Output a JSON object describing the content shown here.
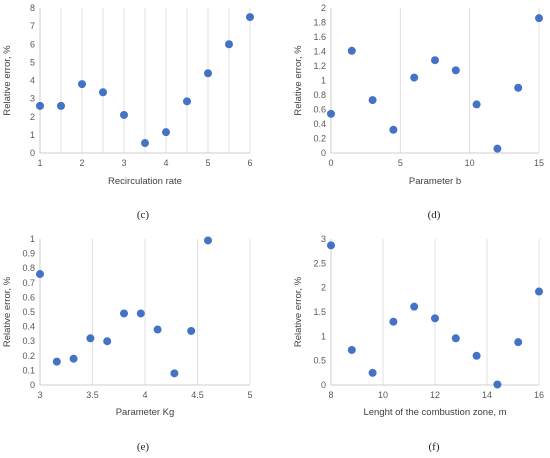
{
  "chart_data": [
    {
      "id": "c",
      "type": "scatter",
      "caption": "(c)",
      "xlabel": "Recirculation rate",
      "ylabel": "Relative error, %",
      "xlim": [
        1,
        6
      ],
      "ylim": [
        0,
        8
      ],
      "xticks": [
        1,
        1.5,
        2,
        2.5,
        3,
        3.5,
        4,
        4.5,
        5,
        5.5,
        6
      ],
      "xtick_labels": [
        "1",
        "",
        "2",
        "",
        "3",
        "",
        "4",
        "",
        "5",
        "",
        "6"
      ],
      "yticks": [
        0,
        1,
        2,
        3,
        4,
        5,
        6,
        7,
        8
      ],
      "ytick_labels": [
        "0",
        "1",
        "2",
        "3",
        "4",
        "5",
        "6",
        "7",
        "8"
      ],
      "grid": "vertical",
      "points": [
        [
          1,
          2.6
        ],
        [
          1.5,
          2.6
        ],
        [
          2,
          3.8
        ],
        [
          2.5,
          3.35
        ],
        [
          3,
          2.1
        ],
        [
          3.5,
          0.55
        ],
        [
          4,
          1.15
        ],
        [
          4.5,
          2.85
        ],
        [
          5,
          4.4
        ],
        [
          5.5,
          6.0
        ],
        [
          6,
          7.5
        ]
      ]
    },
    {
      "id": "d",
      "type": "scatter",
      "caption": "(d)",
      "xlabel": "Parameter b",
      "ylabel": "Relative error, %",
      "xlim": [
        0,
        15
      ],
      "ylim": [
        0,
        2
      ],
      "xticks": [
        0,
        5,
        10,
        15
      ],
      "xtick_labels": [
        "0",
        "5",
        "10",
        "15"
      ],
      "yticks": [
        0,
        0.2,
        0.4,
        0.6,
        0.8,
        1,
        1.2,
        1.4,
        1.6,
        1.8,
        2
      ],
      "ytick_labels": [
        "0",
        "0.2",
        "0.4",
        "0.6",
        "0.8",
        "1",
        "1.2",
        "1.4",
        "1.6",
        "1.8",
        "2"
      ],
      "grid": "vertical",
      "points": [
        [
          0,
          0.54
        ],
        [
          1.5,
          1.41
        ],
        [
          3,
          0.73
        ],
        [
          4.5,
          0.32
        ],
        [
          6,
          1.04
        ],
        [
          7.5,
          1.28
        ],
        [
          9,
          1.14
        ],
        [
          10.5,
          0.67
        ],
        [
          12,
          0.06
        ],
        [
          13.5,
          0.9
        ],
        [
          15,
          1.86
        ]
      ]
    },
    {
      "id": "e",
      "type": "scatter",
      "caption": "(e)",
      "xlabel": "Parameter Kg",
      "ylabel": "Relative error, %",
      "xlim": [
        3,
        5
      ],
      "ylim": [
        0,
        1
      ],
      "xticks": [
        3,
        3.5,
        4,
        4.5,
        5
      ],
      "xtick_labels": [
        "3",
        "3.5",
        "4",
        "4.5",
        "5"
      ],
      "yticks": [
        0,
        0.1,
        0.2,
        0.3,
        0.4,
        0.5,
        0.6,
        0.7,
        0.8,
        0.9,
        1
      ],
      "ytick_labels": [
        "0",
        "0.1",
        "0.2",
        "0.3",
        "0.4",
        "0.5",
        "0.6",
        "0.7",
        "0.8",
        "0.9",
        "1"
      ],
      "grid": "vertical",
      "points": [
        [
          3.0,
          0.76
        ],
        [
          3.16,
          0.16
        ],
        [
          3.32,
          0.18
        ],
        [
          3.48,
          0.32
        ],
        [
          3.64,
          0.3
        ],
        [
          3.8,
          0.49
        ],
        [
          3.96,
          0.49
        ],
        [
          4.12,
          0.38
        ],
        [
          4.28,
          0.08
        ],
        [
          4.44,
          0.37
        ],
        [
          4.6,
          0.99
        ]
      ]
    },
    {
      "id": "f",
      "type": "scatter",
      "caption": "(f)",
      "xlabel": "Lenght of the combustion zone, m",
      "ylabel": "Relative error, %",
      "xlim": [
        8,
        16
      ],
      "ylim": [
        0,
        3
      ],
      "xticks": [
        8,
        10,
        12,
        14,
        16
      ],
      "xtick_labels": [
        "8",
        "10",
        "12",
        "14",
        "16"
      ],
      "yticks": [
        0,
        0.5,
        1,
        1.5,
        2,
        2.5,
        3
      ],
      "ytick_labels": [
        "0",
        "0.5",
        "1",
        "1.5",
        "2",
        "2.5",
        "3"
      ],
      "grid": "vertical",
      "points": [
        [
          8,
          2.87
        ],
        [
          8.8,
          0.72
        ],
        [
          9.6,
          0.25
        ],
        [
          10.4,
          1.3
        ],
        [
          11.2,
          1.61
        ],
        [
          12,
          1.37
        ],
        [
          12.8,
          0.96
        ],
        [
          13.6,
          0.6
        ],
        [
          14.4,
          0.01
        ],
        [
          15.2,
          0.88
        ],
        [
          16,
          1.92
        ]
      ]
    }
  ]
}
